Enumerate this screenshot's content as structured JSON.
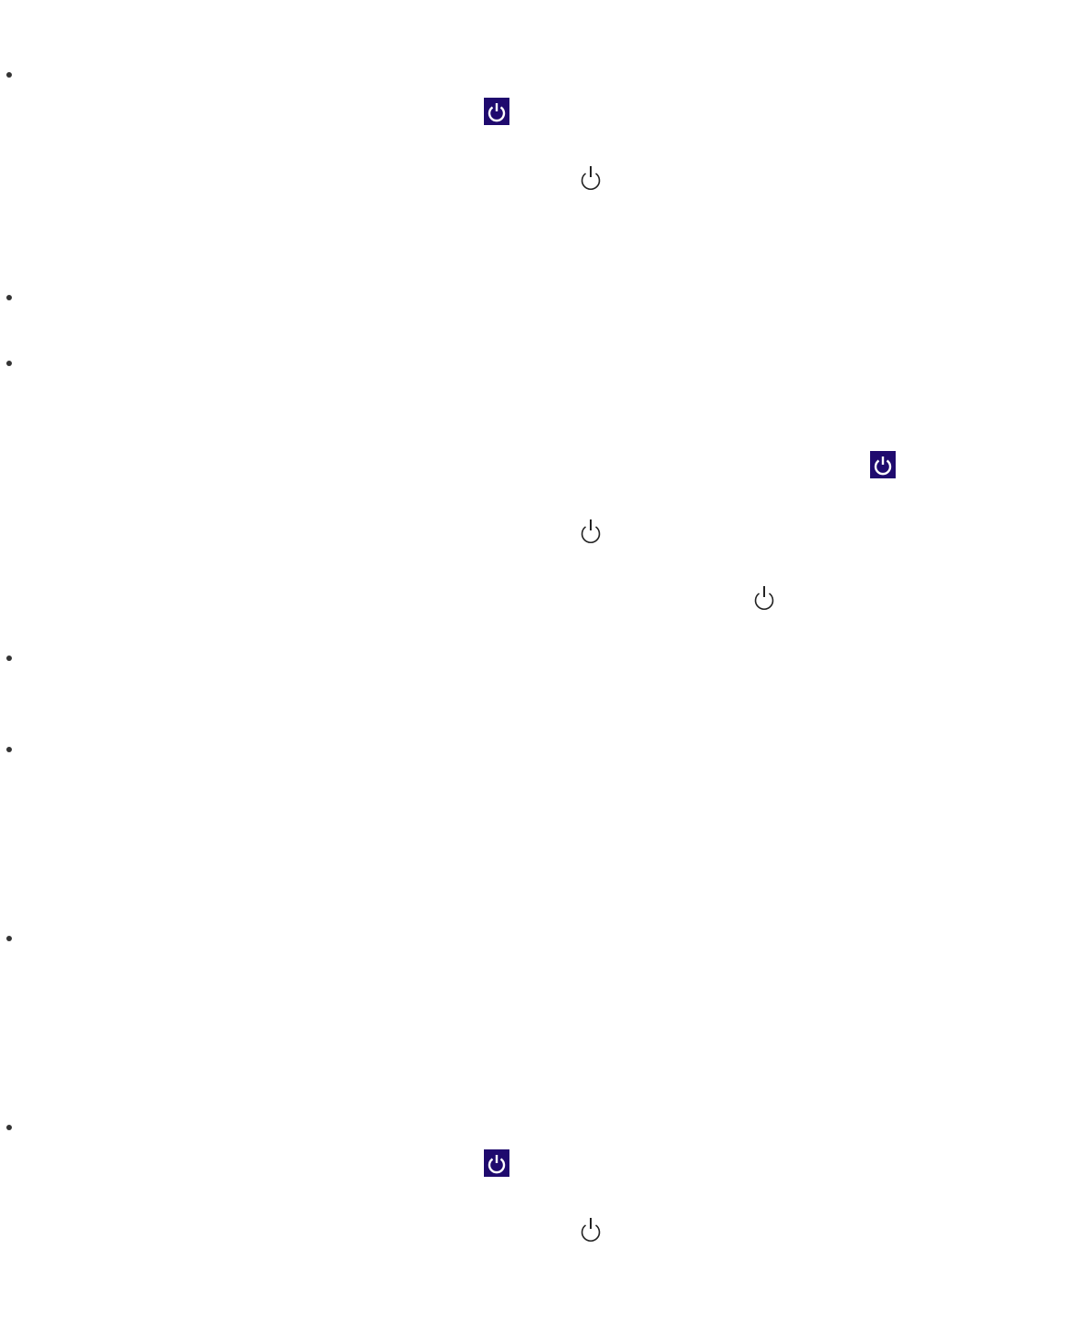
{
  "colors": {
    "filled_icon_background": "#1f0a6e",
    "filled_icon_glyph": "#ffffff",
    "outline_icon_stroke": "#222222",
    "bullet": "#333333"
  },
  "list": {
    "items": [
      {
        "icons": [
          "power-button-filled-icon",
          "power-button-outline-icon"
        ]
      },
      {
        "icons": []
      },
      {
        "icons": [
          "power-button-filled-icon",
          "power-button-outline-icon",
          "power-button-outline-icon"
        ]
      },
      {
        "icons": []
      },
      {
        "icons": []
      },
      {
        "icons": []
      },
      {
        "icons": [
          "power-button-filled-icon",
          "power-button-outline-icon"
        ]
      }
    ]
  }
}
